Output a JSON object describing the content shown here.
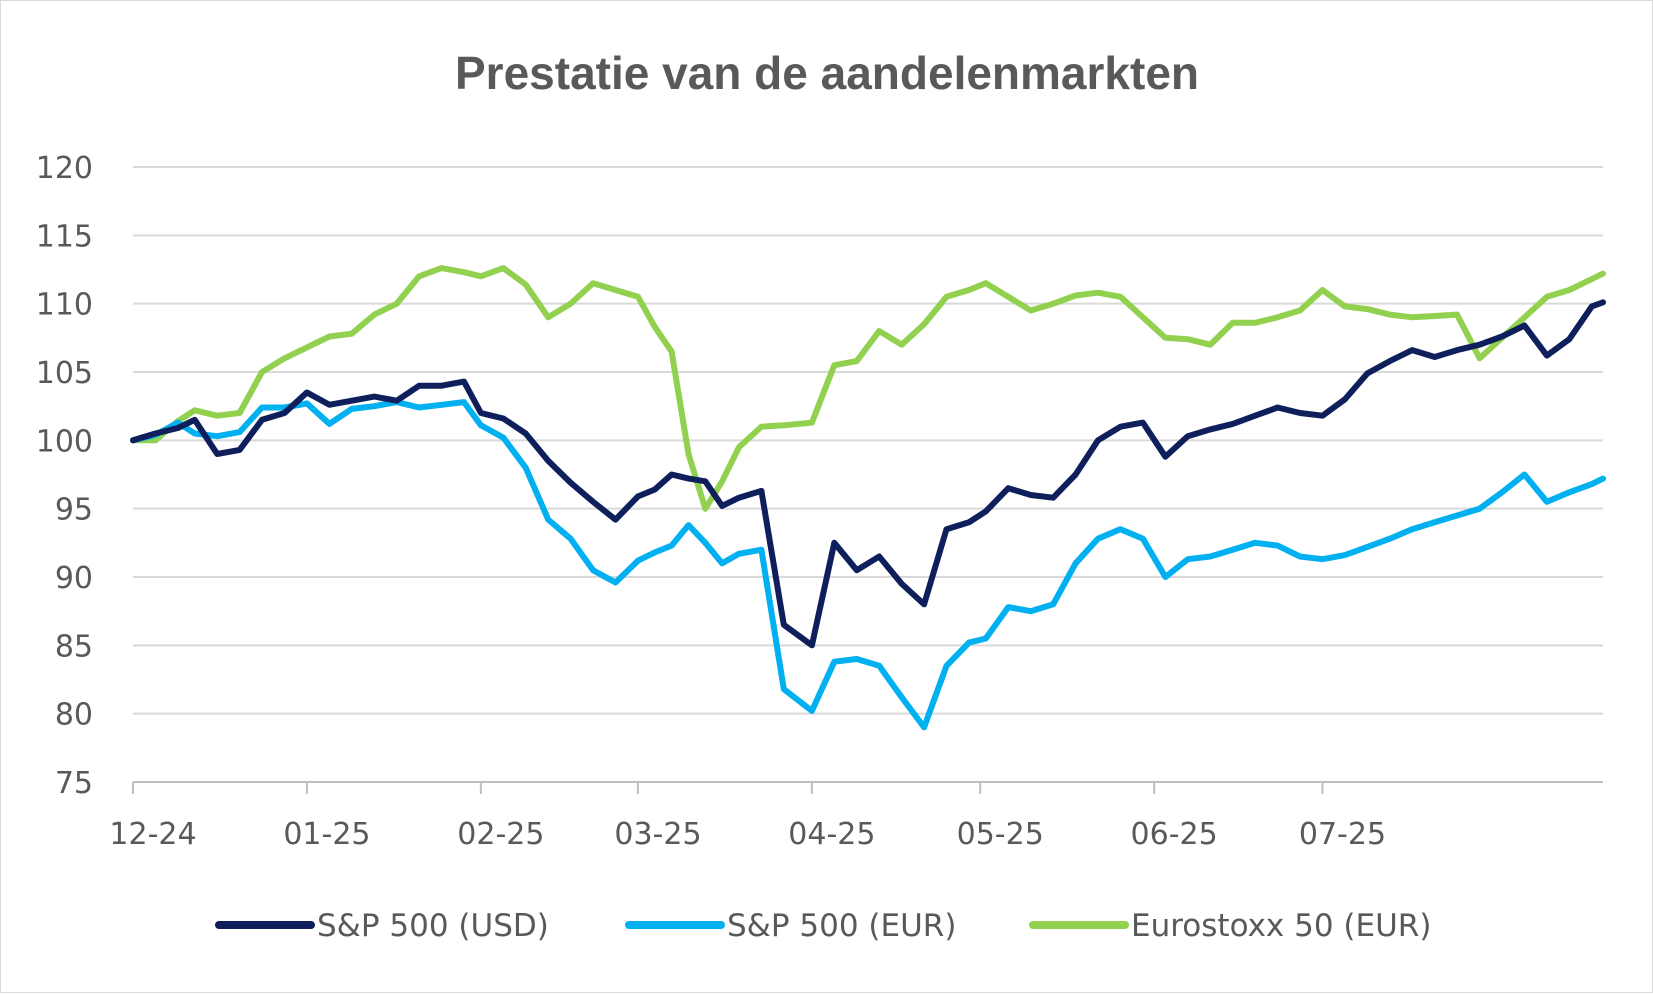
{
  "chart_data": {
    "type": "line",
    "title": "Prestatie van de aandelenmarkten",
    "xlabel": "",
    "ylabel": "",
    "ylim": [
      75,
      120
    ],
    "yticks": [
      "120",
      "115",
      "110",
      "105",
      "100",
      "95",
      "90",
      "85",
      "80",
      "75"
    ],
    "ytick_values": [
      120,
      115,
      110,
      105,
      100,
      95,
      90,
      85,
      80,
      75
    ],
    "xlim": [
      "2024-12-01",
      "2025-08-20"
    ],
    "xticks": [
      {
        "label": "12-24",
        "date": "2024-12-01"
      },
      {
        "label": "01-25",
        "date": "2025-01-01"
      },
      {
        "label": "02-25",
        "date": "2025-02-01"
      },
      {
        "label": "03-25",
        "date": "2025-03-01"
      },
      {
        "label": "04-25",
        "date": "2025-04-01"
      },
      {
        "label": "05-25",
        "date": "2025-05-01"
      },
      {
        "label": "06-25",
        "date": "2025-06-01"
      },
      {
        "label": "07-25",
        "date": "2025-07-01"
      }
    ],
    "grid": true,
    "legend": "bottom",
    "x": [
      "2024-12-01",
      "2024-12-05",
      "2024-12-09",
      "2024-12-12",
      "2024-12-16",
      "2024-12-20",
      "2024-12-24",
      "2024-12-28",
      "2025-01-01",
      "2025-01-05",
      "2025-01-09",
      "2025-01-13",
      "2025-01-17",
      "2025-01-21",
      "2025-01-25",
      "2025-01-29",
      "2025-02-01",
      "2025-02-05",
      "2025-02-09",
      "2025-02-13",
      "2025-02-17",
      "2025-02-21",
      "2025-02-25",
      "2025-03-01",
      "2025-03-04",
      "2025-03-07",
      "2025-03-10",
      "2025-03-13",
      "2025-03-16",
      "2025-03-19",
      "2025-03-23",
      "2025-03-27",
      "2025-04-01",
      "2025-04-05",
      "2025-04-09",
      "2025-04-13",
      "2025-04-17",
      "2025-04-21",
      "2025-04-25",
      "2025-04-29",
      "2025-05-02",
      "2025-05-06",
      "2025-05-10",
      "2025-05-14",
      "2025-05-18",
      "2025-05-22",
      "2025-05-26",
      "2025-05-30",
      "2025-06-03",
      "2025-06-07",
      "2025-06-11",
      "2025-06-15",
      "2025-06-19",
      "2025-06-23",
      "2025-06-27",
      "2025-07-01",
      "2025-07-05",
      "2025-07-09",
      "2025-07-13",
      "2025-07-17",
      "2025-07-21",
      "2025-07-25",
      "2025-07-29",
      "2025-08-02",
      "2025-08-06",
      "2025-08-10",
      "2025-08-14",
      "2025-08-18",
      "2025-08-20"
    ],
    "series": [
      {
        "name": "S&P 500 (USD)",
        "color": "#0e1f5b",
        "values": [
          100.0,
          100.5,
          100.9,
          101.5,
          99.0,
          99.3,
          101.5,
          102.0,
          103.5,
          102.6,
          102.9,
          103.2,
          102.9,
          104.0,
          104.0,
          104.3,
          102.0,
          101.6,
          100.5,
          98.5,
          96.9,
          95.5,
          94.2,
          95.9,
          96.4,
          97.5,
          97.2,
          97.0,
          95.2,
          95.8,
          96.3,
          86.5,
          85.0,
          92.5,
          90.5,
          91.5,
          89.5,
          88.0,
          93.5,
          94.0,
          94.8,
          96.5,
          96.0,
          95.8,
          97.5,
          100.0,
          101.0,
          101.3,
          98.8,
          100.3,
          100.8,
          101.2,
          101.8,
          102.4,
          102.0,
          101.8,
          103.0,
          104.9,
          105.8,
          106.6,
          106.1,
          106.6,
          107.0,
          107.6,
          108.4,
          106.2,
          107.4,
          109.8,
          110.1
        ]
      },
      {
        "name": "S&P 500 (EUR)",
        "color": "#00b0f0",
        "values": [
          100.0,
          100.4,
          101.3,
          100.5,
          100.3,
          100.6,
          102.4,
          102.4,
          102.7,
          101.2,
          102.3,
          102.5,
          102.8,
          102.4,
          102.6,
          102.8,
          101.1,
          100.2,
          98.0,
          94.2,
          92.8,
          90.5,
          89.6,
          91.2,
          91.8,
          92.3,
          93.8,
          92.5,
          91.0,
          91.7,
          92.0,
          81.8,
          80.2,
          83.8,
          84.0,
          83.5,
          81.2,
          79.0,
          83.5,
          85.2,
          85.5,
          87.8,
          87.5,
          88.0,
          91.0,
          92.8,
          93.5,
          92.8,
          90.0,
          91.3,
          91.5,
          92.0,
          92.5,
          92.3,
          91.5,
          91.3,
          91.6,
          92.2,
          92.8,
          93.5,
          94.0,
          94.5,
          95.0,
          96.2,
          97.5,
          95.5,
          96.2,
          96.8,
          97.2
        ]
      },
      {
        "name": "Eurostoxx 50 (EUR)",
        "color": "#92d050",
        "values": [
          100.0,
          100.0,
          101.4,
          102.2,
          101.8,
          102.0,
          105.0,
          106.0,
          106.8,
          107.6,
          107.8,
          109.2,
          110.0,
          112.0,
          112.6,
          112.3,
          112.0,
          112.6,
          111.4,
          109.0,
          110.0,
          111.5,
          111.0,
          110.5,
          108.3,
          106.5,
          99.0,
          95.0,
          97.0,
          99.5,
          101.0,
          101.1,
          101.3,
          105.5,
          105.8,
          108.0,
          107.0,
          108.5,
          110.5,
          111.0,
          111.5,
          110.5,
          109.5,
          110.0,
          110.6,
          110.8,
          110.5,
          109.0,
          107.5,
          107.4,
          107.0,
          108.6,
          108.6,
          109.0,
          109.5,
          111.0,
          109.8,
          109.6,
          109.2,
          109.0,
          109.1,
          109.2,
          106.0,
          107.5,
          109.0,
          110.5,
          111.0,
          111.8,
          112.2
        ]
      }
    ]
  }
}
